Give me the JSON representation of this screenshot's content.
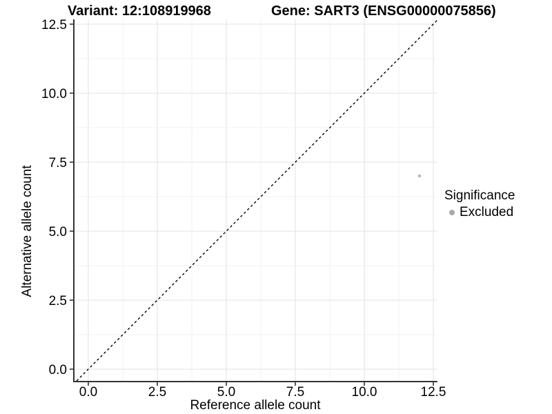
{
  "titles": {
    "variant": "Variant: 12:108919968",
    "gene": "Gene: SART3 (ENSG00000075856)"
  },
  "legend": {
    "title": "Significance",
    "items": [
      {
        "label": "Excluded",
        "color": "#a8a8a8"
      }
    ]
  },
  "chart_data": {
    "type": "scatter",
    "title": "Variant: 12:108919968 | Gene: SART3 (ENSG00000075856)",
    "xlabel": "Reference allele count",
    "ylabel": "Alternative allele count",
    "xlim": [
      -0.5,
      12.65
    ],
    "ylim": [
      -0.425,
      13.1
    ],
    "x_ticks": [
      0.0,
      2.5,
      5.0,
      7.5,
      10.0,
      12.5
    ],
    "y_ticks": [
      0.0,
      2.5,
      5.0,
      7.5,
      10.0,
      12.5
    ],
    "x_minor_ticks": [
      1.25,
      3.75,
      6.25,
      8.75,
      11.25
    ],
    "y_minor_ticks": [
      1.25,
      3.75,
      6.25,
      8.75,
      11.25
    ],
    "grid": true,
    "legend_position": "right",
    "legend_title": "Significance",
    "series": [
      {
        "name": "Excluded",
        "color": "#b3b3b3",
        "points": [
          {
            "x": 12,
            "y": 7
          }
        ]
      }
    ],
    "reference_line": {
      "type": "identity y=x",
      "style": "dashed",
      "color": "#000000"
    }
  },
  "style_colors": {
    "axis_line": "#333333",
    "tick_mark": "#333333",
    "grid_major": "#e7e7e7",
    "grid_minor": "#f2f2f2",
    "point": "#b3b3b3",
    "legend_dot": "#a8a8a8",
    "diagonal": "#000000",
    "background": "#ffffff"
  }
}
